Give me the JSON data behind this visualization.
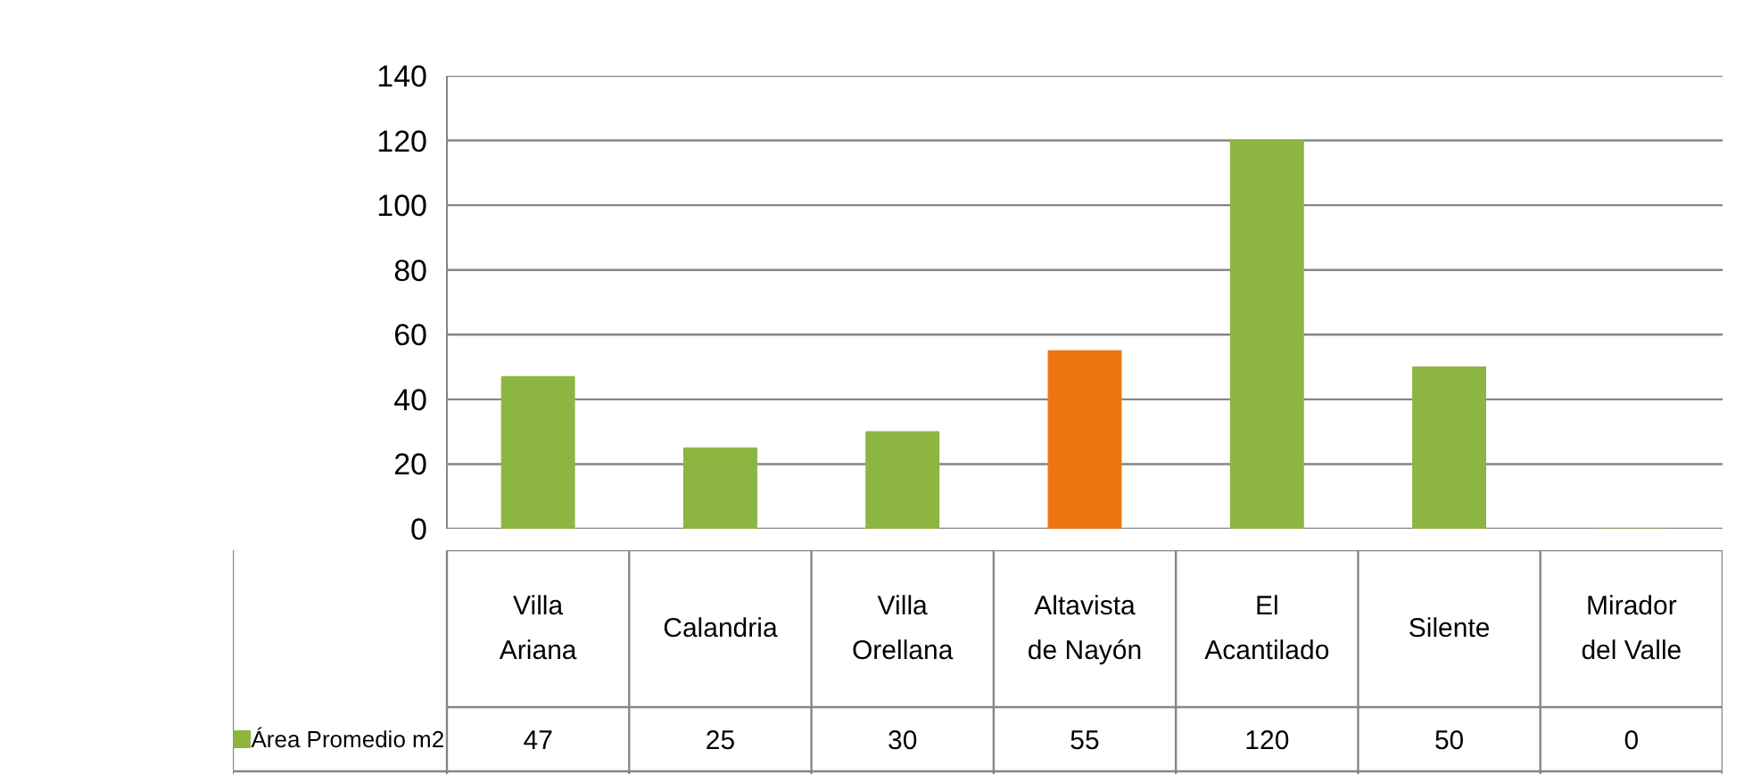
{
  "chart_data": {
    "type": "bar",
    "categories": [
      "Villa Ariana",
      "Calandria",
      "Villa Orellana",
      "Altavista de Nayón",
      "El Acantilado",
      "Silente",
      "Mirador del Valle"
    ],
    "series": [
      {
        "name": "Área Promedio m2",
        "color": "#8db542",
        "values": [
          47,
          25,
          30,
          55,
          120,
          50,
          0
        ],
        "colors": [
          "#8db542",
          "#8db542",
          "#8db542",
          "#ee7410",
          "#8db542",
          "#8db542",
          "#8db542"
        ]
      }
    ],
    "ylim": [
      0,
      140
    ],
    "yticks": [
      0,
      20,
      40,
      60,
      80,
      100,
      120,
      140
    ],
    "grid": "y",
    "legend": "bottom",
    "data_labels": true
  }
}
